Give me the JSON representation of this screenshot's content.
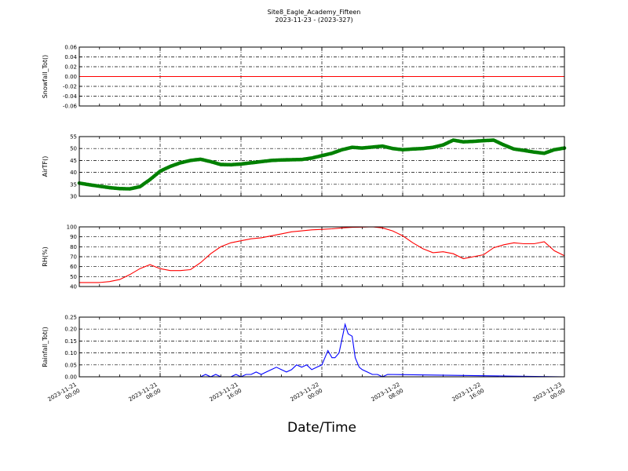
{
  "figure": {
    "title_line1": "Site8_Eagle_Academy_Fifteen",
    "title_line2": "2023-11-23 - (2023-327)",
    "xlabel": "Date/Time"
  },
  "chart_data": [
    {
      "type": "line",
      "ylabel": "Snowfall_Tot()",
      "ylim": [
        -0.06,
        0.06
      ],
      "yticks": [
        "0.06",
        "0.04",
        "0.02",
        "0.00",
        "-0.02",
        "-0.04",
        "-0.06"
      ],
      "color": "#ff0000",
      "marker": false,
      "grid": true,
      "x_hours": [
        0,
        48
      ],
      "values": [
        0,
        0
      ]
    },
    {
      "type": "line",
      "ylabel": "AirTF()",
      "ylim": [
        30,
        55
      ],
      "yticks": [
        "55",
        "50",
        "45",
        "40",
        "35",
        "30"
      ],
      "color": "#008000",
      "marker": true,
      "grid": true,
      "x_hours": [
        0,
        1,
        2,
        3,
        4,
        5,
        6,
        7,
        8,
        9,
        10,
        11,
        12,
        13,
        14,
        15,
        16,
        17,
        18,
        19,
        20,
        21,
        22,
        23,
        24,
        25,
        26,
        27,
        28,
        29,
        30,
        31,
        32,
        33,
        34,
        35,
        36,
        37,
        38,
        39,
        40,
        41,
        42,
        43,
        44,
        45,
        46,
        47,
        48
      ],
      "values": [
        35.5,
        34.8,
        34.2,
        33.6,
        33.2,
        33.1,
        34,
        37,
        40.5,
        42.5,
        44,
        45,
        45.5,
        44.5,
        43.3,
        43.2,
        43.5,
        44,
        44.5,
        45,
        45.2,
        45.3,
        45.4,
        46,
        47,
        48,
        49.5,
        50.5,
        50.2,
        50.6,
        51,
        50,
        49.5,
        49.8,
        50,
        50.5,
        51.5,
        53.5,
        52.8,
        53,
        53.3,
        53.5,
        51.5,
        49.8,
        49.2,
        48.5,
        48,
        49.5,
        50.2
      ]
    },
    {
      "type": "line",
      "ylabel": "RH(%)",
      "ylim": [
        40,
        100
      ],
      "yticks": [
        "100",
        "90",
        "80",
        "70",
        "60",
        "50",
        "40"
      ],
      "color": "#ff0000",
      "marker": false,
      "grid": true,
      "x_hours": [
        0,
        1,
        2,
        3,
        4,
        5,
        6,
        7,
        7.5,
        8,
        9,
        10,
        11,
        12,
        13,
        14,
        15,
        16,
        17,
        18,
        19,
        20,
        21,
        22,
        23,
        24,
        25,
        26,
        27,
        28,
        29,
        30,
        31,
        32,
        33,
        34,
        35,
        36,
        37,
        38,
        39,
        40,
        41,
        42,
        43,
        44,
        45,
        46,
        47,
        48
      ],
      "values": [
        44,
        44,
        44,
        45,
        47,
        52,
        58,
        62,
        60,
        58,
        56,
        56,
        57,
        64,
        73,
        80,
        84,
        86,
        88,
        89,
        91,
        93,
        95,
        96,
        97,
        97.5,
        98,
        99,
        99.5,
        99.8,
        100,
        99,
        96,
        91,
        84,
        78,
        74,
        75,
        73,
        68,
        70,
        72,
        79,
        82,
        84,
        83,
        83,
        85,
        76,
        71
      ]
    },
    {
      "type": "line",
      "ylabel": "Rainfall_Tot()",
      "ylim": [
        0,
        0.25
      ],
      "yticks": [
        "0.25",
        "0.20",
        "0.15",
        "0.10",
        "0.05",
        "0.00"
      ],
      "color": "#0000ff",
      "marker": false,
      "grid": true,
      "x_hours": [
        0,
        12,
        12.5,
        13,
        13.5,
        14,
        14.5,
        15,
        15.5,
        16,
        16.5,
        17,
        17.5,
        18,
        18.5,
        19,
        19.5,
        20,
        20.5,
        21,
        21.5,
        22,
        22.5,
        23,
        23.5,
        24,
        24.3,
        24.6,
        25,
        25.3,
        25.7,
        26,
        26.3,
        26.6,
        27,
        27.3,
        27.7,
        28,
        28.5,
        29,
        29.5,
        30,
        30.5,
        48
      ],
      "values": [
        0,
        0,
        0.01,
        0,
        0.01,
        0,
        0,
        0,
        0.01,
        0,
        0.01,
        0.01,
        0.02,
        0.01,
        0.02,
        0.03,
        0.04,
        0.03,
        0.02,
        0.03,
        0.05,
        0.04,
        0.05,
        0.03,
        0.04,
        0.05,
        0.08,
        0.11,
        0.08,
        0.08,
        0.1,
        0.16,
        0.22,
        0.18,
        0.17,
        0.08,
        0.04,
        0.03,
        0.02,
        0.01,
        0.01,
        0,
        0.01,
        0
      ]
    }
  ],
  "xaxis": {
    "range_hours": [
      0,
      48
    ],
    "ticks": [
      {
        "hour": 0,
        "line1": "2023-11-21",
        "line2": "00:00"
      },
      {
        "hour": 8,
        "line1": "2023-11-21",
        "line2": "08:00"
      },
      {
        "hour": 16,
        "line1": "2023-11-21",
        "line2": "16:00"
      },
      {
        "hour": 24,
        "line1": "2023-11-22",
        "line2": "00:00"
      },
      {
        "hour": 32,
        "line1": "2023-11-22",
        "line2": "08:00"
      },
      {
        "hour": 40,
        "line1": "2023-11-22",
        "line2": "16:00"
      },
      {
        "hour": 48,
        "line1": "2023-11-23",
        "line2": "00:00"
      }
    ]
  }
}
